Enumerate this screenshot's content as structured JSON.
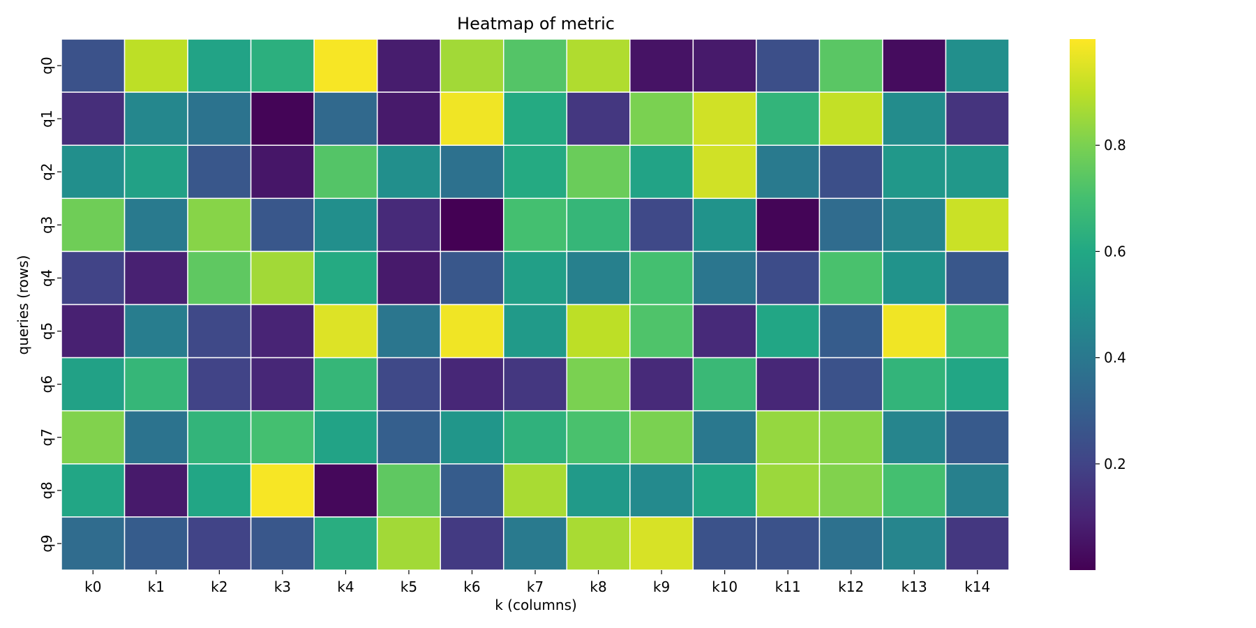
{
  "chart_data": {
    "type": "heatmap",
    "title": "Heatmap of metric",
    "xlabel": "k (columns)",
    "ylabel": "queries (rows)",
    "x_categories": [
      "k0",
      "k1",
      "k2",
      "k3",
      "k4",
      "k5",
      "k6",
      "k7",
      "k8",
      "k9",
      "k10",
      "k11",
      "k12",
      "k13",
      "k14"
    ],
    "y_categories": [
      "q0",
      "q1",
      "q2",
      "q3",
      "q4",
      "q5",
      "q6",
      "q7",
      "q8",
      "q9"
    ],
    "values": [
      [
        0.25,
        0.9,
        0.58,
        0.63,
        0.99,
        0.08,
        0.86,
        0.73,
        0.88,
        0.05,
        0.07,
        0.24,
        0.74,
        0.03,
        0.49
      ],
      [
        0.13,
        0.46,
        0.38,
        0.01,
        0.34,
        0.07,
        0.98,
        0.61,
        0.16,
        0.8,
        0.93,
        0.65,
        0.91,
        0.48,
        0.15
      ],
      [
        0.49,
        0.57,
        0.27,
        0.06,
        0.73,
        0.49,
        0.37,
        0.61,
        0.77,
        0.58,
        0.93,
        0.41,
        0.24,
        0.53,
        0.53
      ],
      [
        0.78,
        0.41,
        0.82,
        0.27,
        0.49,
        0.12,
        0.0,
        0.7,
        0.66,
        0.22,
        0.51,
        0.01,
        0.35,
        0.45,
        0.92
      ],
      [
        0.2,
        0.09,
        0.75,
        0.86,
        0.61,
        0.07,
        0.27,
        0.56,
        0.43,
        0.7,
        0.39,
        0.23,
        0.71,
        0.51,
        0.27
      ],
      [
        0.09,
        0.42,
        0.22,
        0.1,
        0.95,
        0.39,
        0.98,
        0.54,
        0.9,
        0.72,
        0.12,
        0.59,
        0.29,
        0.98,
        0.7
      ],
      [
        0.57,
        0.66,
        0.2,
        0.11,
        0.66,
        0.22,
        0.11,
        0.16,
        0.8,
        0.12,
        0.67,
        0.11,
        0.25,
        0.65,
        0.59
      ],
      [
        0.81,
        0.38,
        0.65,
        0.7,
        0.58,
        0.3,
        0.52,
        0.64,
        0.71,
        0.8,
        0.4,
        0.84,
        0.82,
        0.45,
        0.28
      ],
      [
        0.59,
        0.07,
        0.59,
        0.99,
        0.02,
        0.75,
        0.29,
        0.87,
        0.54,
        0.47,
        0.6,
        0.85,
        0.81,
        0.7,
        0.43
      ],
      [
        0.35,
        0.29,
        0.2,
        0.27,
        0.62,
        0.86,
        0.17,
        0.41,
        0.87,
        0.94,
        0.25,
        0.25,
        0.37,
        0.45,
        0.16
      ]
    ],
    "colormap": "viridis",
    "vmin": 0.0,
    "vmax": 1.0,
    "colorbar_ticks": [
      0.2,
      0.4,
      0.6,
      0.8
    ],
    "cell_border_color": "#ffffff",
    "grid": false,
    "colorbar_position": "right"
  }
}
